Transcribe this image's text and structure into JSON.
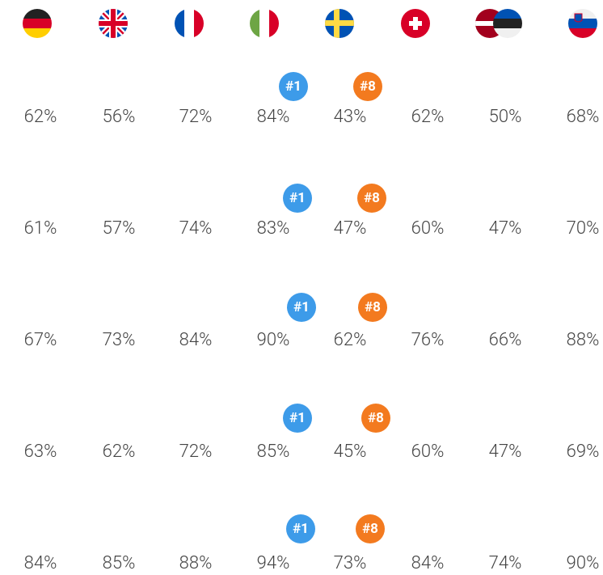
{
  "table": {
    "rows": [
      {
        "badges": [
          "#1",
          "#8"
        ],
        "values": [
          "62%",
          "56%",
          "72%",
          "84%",
          "43%",
          "62%",
          "50%",
          "68%"
        ]
      },
      {
        "badges": [
          "#1",
          "#8"
        ],
        "values": [
          "61%",
          "57%",
          "74%",
          "83%",
          "47%",
          "60%",
          "47%",
          "70%"
        ]
      },
      {
        "badges": [
          "#1",
          "#8"
        ],
        "values": [
          "67%",
          "73%",
          "84%",
          "90%",
          "62%",
          "76%",
          "66%",
          "88%"
        ]
      },
      {
        "badges": [
          "#1",
          "#8"
        ],
        "values": [
          "63%",
          "62%",
          "72%",
          "85%",
          "45%",
          "60%",
          "47%",
          "69%"
        ]
      },
      {
        "badges": [
          "#1",
          "#8"
        ],
        "values": [
          "84%",
          "85%",
          "88%",
          "94%",
          "73%",
          "84%",
          "74%",
          "90%"
        ]
      }
    ]
  }
}
